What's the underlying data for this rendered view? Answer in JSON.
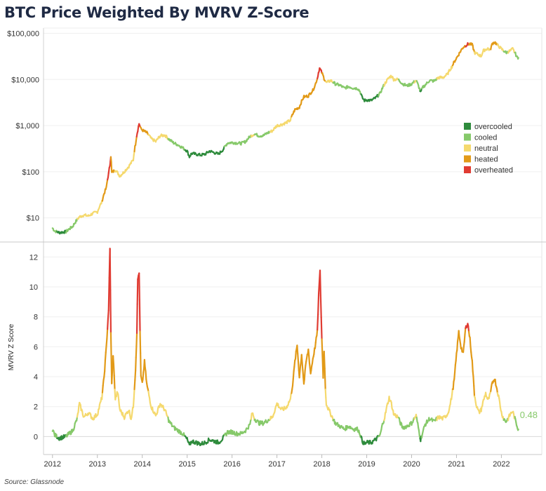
{
  "title": "BTC Price Weighted By MVRV Z-Score",
  "source": "Source: Glassnode",
  "chart_data": {
    "type": "line",
    "colors": {
      "overcooled": "#2e8b3c",
      "cooled": "#86c96a",
      "neutral": "#f5d96e",
      "heated": "#e29a18",
      "overheated": "#e03b32"
    },
    "legend": [
      {
        "key": "overcooled",
        "label": "overcooled"
      },
      {
        "key": "cooled",
        "label": "cooled"
      },
      {
        "key": "neutral",
        "label": "neutral"
      },
      {
        "key": "heated",
        "label": "heated"
      },
      {
        "key": "overheated",
        "label": "overheated"
      }
    ],
    "x_ticks": [
      "2012",
      "2013",
      "2014",
      "2015",
      "2016",
      "2017",
      "2018",
      "2019",
      "2020",
      "2021",
      "2022"
    ],
    "x_range": [
      2011.8,
      2022.9
    ],
    "price_panel": {
      "scale": "log",
      "ylim": [
        3,
        130000
      ],
      "y_ticks": [
        {
          "value": 10,
          "label": "$10"
        },
        {
          "value": 100,
          "label": "$100"
        },
        {
          "value": 1000,
          "label": "$1,000"
        },
        {
          "value": 10000,
          "label": "$10,000"
        },
        {
          "value": 100000,
          "label": "$100,000"
        }
      ],
      "series": [
        [
          2012.0,
          6.0
        ],
        [
          2012.05,
          5.2
        ],
        [
          2012.15,
          4.8
        ],
        [
          2012.3,
          5.0
        ],
        [
          2012.45,
          6.5
        ],
        [
          2012.6,
          10.5
        ],
        [
          2012.7,
          11.5
        ],
        [
          2012.8,
          11.0
        ],
        [
          2012.9,
          12.5
        ],
        [
          2013.0,
          13.5
        ],
        [
          2013.1,
          22
        ],
        [
          2013.2,
          45
        ],
        [
          2013.25,
          90
        ],
        [
          2013.28,
          140
        ],
        [
          2013.3,
          220
        ],
        [
          2013.32,
          95
        ],
        [
          2013.4,
          110
        ],
        [
          2013.5,
          80
        ],
        [
          2013.6,
          100
        ],
        [
          2013.7,
          130
        ],
        [
          2013.8,
          180
        ],
        [
          2013.85,
          400
        ],
        [
          2013.9,
          800
        ],
        [
          2013.93,
          1100
        ],
        [
          2013.97,
          850
        ],
        [
          2014.0,
          800
        ],
        [
          2014.1,
          700
        ],
        [
          2014.2,
          520
        ],
        [
          2014.3,
          450
        ],
        [
          2014.4,
          600
        ],
        [
          2014.5,
          620
        ],
        [
          2014.6,
          500
        ],
        [
          2014.7,
          420
        ],
        [
          2014.8,
          380
        ],
        [
          2014.9,
          330
        ],
        [
          2015.0,
          280
        ],
        [
          2015.05,
          210
        ],
        [
          2015.1,
          250
        ],
        [
          2015.2,
          240
        ],
        [
          2015.3,
          230
        ],
        [
          2015.4,
          240
        ],
        [
          2015.5,
          280
        ],
        [
          2015.6,
          260
        ],
        [
          2015.7,
          240
        ],
        [
          2015.8,
          300
        ],
        [
          2015.9,
          420
        ],
        [
          2016.0,
          430
        ],
        [
          2016.1,
          420
        ],
        [
          2016.2,
          410
        ],
        [
          2016.3,
          450
        ],
        [
          2016.4,
          580
        ],
        [
          2016.5,
          660
        ],
        [
          2016.6,
          600
        ],
        [
          2016.7,
          610
        ],
        [
          2016.8,
          700
        ],
        [
          2016.9,
          770
        ],
        [
          2017.0,
          1000
        ],
        [
          2017.1,
          1050
        ],
        [
          2017.2,
          1150
        ],
        [
          2017.3,
          1300
        ],
        [
          2017.4,
          2200
        ],
        [
          2017.5,
          2500
        ],
        [
          2017.6,
          4200
        ],
        [
          2017.7,
          4400
        ],
        [
          2017.8,
          5800
        ],
        [
          2017.85,
          7500
        ],
        [
          2017.9,
          10500
        ],
        [
          2017.95,
          17500
        ],
        [
          2018.0,
          14000
        ],
        [
          2018.05,
          10500
        ],
        [
          2018.1,
          8500
        ],
        [
          2018.2,
          9500
        ],
        [
          2018.3,
          8000
        ],
        [
          2018.4,
          7500
        ],
        [
          2018.5,
          6500
        ],
        [
          2018.6,
          7000
        ],
        [
          2018.7,
          6500
        ],
        [
          2018.8,
          6400
        ],
        [
          2018.85,
          5500
        ],
        [
          2018.9,
          4000
        ],
        [
          2018.95,
          3500
        ],
        [
          2019.0,
          3600
        ],
        [
          2019.1,
          3500
        ],
        [
          2019.2,
          4000
        ],
        [
          2019.3,
          5000
        ],
        [
          2019.4,
          8000
        ],
        [
          2019.5,
          11000
        ],
        [
          2019.55,
          12000
        ],
        [
          2019.6,
          10000
        ],
        [
          2019.7,
          10000
        ],
        [
          2019.8,
          8000
        ],
        [
          2019.9,
          7300
        ],
        [
          2020.0,
          8000
        ],
        [
          2020.1,
          9500
        ],
        [
          2020.2,
          5200
        ],
        [
          2020.25,
          6800
        ],
        [
          2020.3,
          7500
        ],
        [
          2020.4,
          9500
        ],
        [
          2020.5,
          9200
        ],
        [
          2020.6,
          11000
        ],
        [
          2020.7,
          11000
        ],
        [
          2020.8,
          13000
        ],
        [
          2020.9,
          19000
        ],
        [
          2021.0,
          29000
        ],
        [
          2021.05,
          35000
        ],
        [
          2021.15,
          50000
        ],
        [
          2021.25,
          58000
        ],
        [
          2021.3,
          59000
        ],
        [
          2021.35,
          56000
        ],
        [
          2021.4,
          38000
        ],
        [
          2021.5,
          34000
        ],
        [
          2021.55,
          32000
        ],
        [
          2021.6,
          42000
        ],
        [
          2021.7,
          47000
        ],
        [
          2021.75,
          43000
        ],
        [
          2021.8,
          60000
        ],
        [
          2021.85,
          65000
        ],
        [
          2021.9,
          57000
        ],
        [
          2022.0,
          46000
        ],
        [
          2022.1,
          38000
        ],
        [
          2022.2,
          42000
        ],
        [
          2022.25,
          46000
        ],
        [
          2022.3,
          38000
        ],
        [
          2022.35,
          30000
        ],
        [
          2022.38,
          29500
        ]
      ]
    },
    "zscore_panel": {
      "ylabel": "MVRV Z Score",
      "ylim": [
        -1.2,
        13
      ],
      "y_ticks": [
        0,
        2,
        4,
        6,
        8,
        10,
        12
      ],
      "last_value_label": "0.48",
      "series": [
        [
          2012.0,
          0.5
        ],
        [
          2012.05,
          0.1
        ],
        [
          2012.15,
          -0.1
        ],
        [
          2012.3,
          0.0
        ],
        [
          2012.45,
          0.4
        ],
        [
          2012.55,
          1.2
        ],
        [
          2012.6,
          2.2
        ],
        [
          2012.7,
          1.3
        ],
        [
          2012.8,
          1.6
        ],
        [
          2012.9,
          1.2
        ],
        [
          2013.0,
          1.5
        ],
        [
          2013.1,
          2.6
        ],
        [
          2013.15,
          4.0
        ],
        [
          2013.2,
          6.0
        ],
        [
          2013.25,
          8.5
        ],
        [
          2013.28,
          12.5
        ],
        [
          2013.3,
          7.0
        ],
        [
          2013.32,
          3.5
        ],
        [
          2013.35,
          5.5
        ],
        [
          2013.4,
          2.5
        ],
        [
          2013.45,
          3.0
        ],
        [
          2013.5,
          1.8
        ],
        [
          2013.6,
          1.3
        ],
        [
          2013.7,
          1.8
        ],
        [
          2013.75,
          1.2
        ],
        [
          2013.8,
          2.0
        ],
        [
          2013.85,
          4.5
        ],
        [
          2013.88,
          7.0
        ],
        [
          2013.9,
          10.5
        ],
        [
          2013.93,
          11.0
        ],
        [
          2013.95,
          7.0
        ],
        [
          2013.97,
          4.0
        ],
        [
          2014.0,
          3.5
        ],
        [
          2014.05,
          5.0
        ],
        [
          2014.1,
          3.5
        ],
        [
          2014.2,
          2.0
        ],
        [
          2014.3,
          1.4
        ],
        [
          2014.4,
          2.2
        ],
        [
          2014.5,
          1.8
        ],
        [
          2014.6,
          1.0
        ],
        [
          2014.7,
          0.6
        ],
        [
          2014.8,
          0.4
        ],
        [
          2014.9,
          0.2
        ],
        [
          2015.0,
          -0.2
        ],
        [
          2015.05,
          -0.6
        ],
        [
          2015.1,
          -0.3
        ],
        [
          2015.2,
          -0.4
        ],
        [
          2015.3,
          -0.5
        ],
        [
          2015.4,
          -0.4
        ],
        [
          2015.5,
          -0.2
        ],
        [
          2015.6,
          -0.3
        ],
        [
          2015.7,
          -0.4
        ],
        [
          2015.8,
          -0.1
        ],
        [
          2015.9,
          0.3
        ],
        [
          2016.0,
          0.3
        ],
        [
          2016.1,
          0.2
        ],
        [
          2016.2,
          0.2
        ],
        [
          2016.3,
          0.4
        ],
        [
          2016.4,
          0.8
        ],
        [
          2016.45,
          1.6
        ],
        [
          2016.5,
          1.2
        ],
        [
          2016.6,
          0.9
        ],
        [
          2016.7,
          0.9
        ],
        [
          2016.8,
          1.1
        ],
        [
          2016.9,
          1.3
        ],
        [
          2017.0,
          2.2
        ],
        [
          2017.1,
          1.8
        ],
        [
          2017.2,
          1.9
        ],
        [
          2017.3,
          2.5
        ],
        [
          2017.35,
          3.5
        ],
        [
          2017.4,
          5.0
        ],
        [
          2017.45,
          6.1
        ],
        [
          2017.5,
          4.0
        ],
        [
          2017.55,
          5.5
        ],
        [
          2017.6,
          3.5
        ],
        [
          2017.65,
          5.0
        ],
        [
          2017.7,
          5.8
        ],
        [
          2017.75,
          4.2
        ],
        [
          2017.8,
          5.2
        ],
        [
          2017.85,
          6.0
        ],
        [
          2017.9,
          7.0
        ],
        [
          2017.93,
          9.5
        ],
        [
          2017.96,
          11.0
        ],
        [
          2018.0,
          6.5
        ],
        [
          2018.03,
          4.0
        ],
        [
          2018.05,
          5.8
        ],
        [
          2018.08,
          3.2
        ],
        [
          2018.1,
          2.2
        ],
        [
          2018.15,
          1.8
        ],
        [
          2018.2,
          1.5
        ],
        [
          2018.25,
          1.2
        ],
        [
          2018.3,
          0.9
        ],
        [
          2018.4,
          0.7
        ],
        [
          2018.5,
          0.5
        ],
        [
          2018.6,
          0.7
        ],
        [
          2018.7,
          0.5
        ],
        [
          2018.8,
          0.5
        ],
        [
          2018.85,
          0.2
        ],
        [
          2018.9,
          -0.3
        ],
        [
          2018.95,
          -0.5
        ],
        [
          2019.0,
          -0.4
        ],
        [
          2019.1,
          -0.4
        ],
        [
          2019.2,
          -0.2
        ],
        [
          2019.3,
          0.1
        ],
        [
          2019.35,
          0.8
        ],
        [
          2019.4,
          1.3
        ],
        [
          2019.45,
          2.0
        ],
        [
          2019.5,
          2.6
        ],
        [
          2019.55,
          2.2
        ],
        [
          2019.6,
          1.5
        ],
        [
          2019.7,
          1.3
        ],
        [
          2019.75,
          0.9
        ],
        [
          2019.8,
          0.6
        ],
        [
          2019.9,
          0.7
        ],
        [
          2020.0,
          0.9
        ],
        [
          2020.1,
          1.4
        ],
        [
          2020.15,
          0.6
        ],
        [
          2020.2,
          -0.2
        ],
        [
          2020.25,
          0.3
        ],
        [
          2020.3,
          0.8
        ],
        [
          2020.4,
          1.2
        ],
        [
          2020.5,
          1.0
        ],
        [
          2020.6,
          1.3
        ],
        [
          2020.7,
          1.2
        ],
        [
          2020.8,
          1.5
        ],
        [
          2020.85,
          2.0
        ],
        [
          2020.9,
          2.8
        ],
        [
          2020.95,
          3.8
        ],
        [
          2021.0,
          5.5
        ],
        [
          2021.05,
          7.0
        ],
        [
          2021.1,
          6.0
        ],
        [
          2021.15,
          5.5
        ],
        [
          2021.2,
          7.2
        ],
        [
          2021.25,
          7.6
        ],
        [
          2021.3,
          6.5
        ],
        [
          2021.35,
          5.0
        ],
        [
          2021.4,
          2.8
        ],
        [
          2021.45,
          2.0
        ],
        [
          2021.5,
          1.6
        ],
        [
          2021.55,
          1.8
        ],
        [
          2021.6,
          2.4
        ],
        [
          2021.65,
          2.9
        ],
        [
          2021.7,
          2.4
        ],
        [
          2021.75,
          2.8
        ],
        [
          2021.8,
          3.6
        ],
        [
          2021.85,
          3.9
        ],
        [
          2021.9,
          3.2
        ],
        [
          2021.95,
          2.5
        ],
        [
          2022.0,
          1.6
        ],
        [
          2022.05,
          1.2
        ],
        [
          2022.1,
          1.0
        ],
        [
          2022.15,
          1.2
        ],
        [
          2022.2,
          1.5
        ],
        [
          2022.25,
          1.7
        ],
        [
          2022.3,
          1.2
        ],
        [
          2022.35,
          0.7
        ],
        [
          2022.38,
          0.48
        ]
      ]
    }
  }
}
